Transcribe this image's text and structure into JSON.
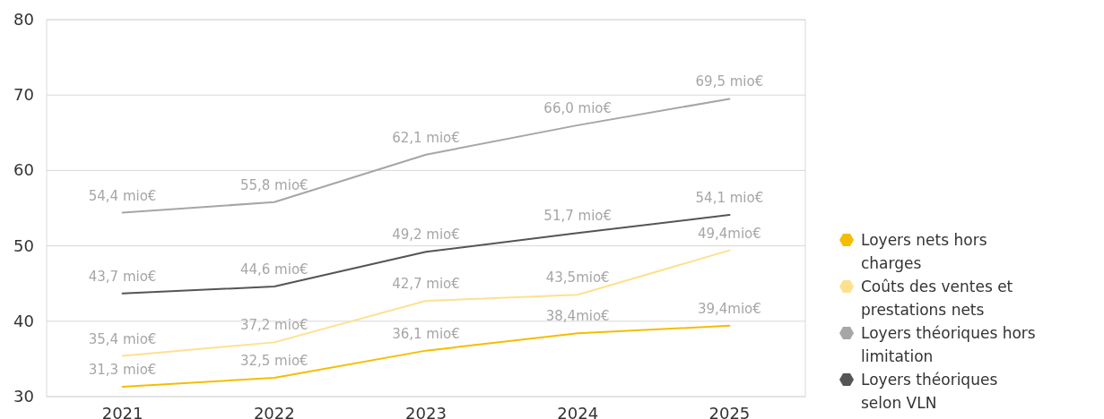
{
  "chart_data": {
    "type": "line",
    "categories": [
      "2021",
      "2022",
      "2023",
      "2024",
      "2025"
    ],
    "ylim": [
      30,
      80
    ],
    "yticks": [
      30,
      40,
      50,
      60,
      70,
      80
    ],
    "grid": "y",
    "legend": "bottom right",
    "marker": "none",
    "line_style": "solid",
    "series": [
      {
        "name": "Loyers nets hors charges",
        "color": "#f5bd00",
        "values": [
          31.3,
          32.5,
          36.1,
          38.4,
          39.4
        ],
        "value_labels": [
          "31,3 mio€",
          "32,5 mio€",
          "36,1 mio€",
          "38,4mio€",
          "39,4mio€"
        ]
      },
      {
        "name": "Coûts des ventes et prestations nets",
        "color": "#fee08f",
        "values": [
          35.4,
          37.2,
          42.7,
          43.5,
          49.4
        ],
        "value_labels": [
          "35,4 mio€",
          "37,2 mio€",
          "42,7 mio€",
          "43,5mio€",
          "49,4mio€"
        ]
      },
      {
        "name": "Loyers théoriques hors limitation",
        "color": "#a6a6a6",
        "values": [
          54.4,
          55.8,
          62.1,
          66.0,
          69.5
        ],
        "value_labels": [
          "54,4 mio€",
          "55,8 mio€",
          "62,1 mio€",
          "66,0 mio€",
          "69,5 mio€"
        ]
      },
      {
        "name": "Loyers théoriques selon VLN",
        "color": "#555555",
        "values": [
          43.7,
          44.6,
          49.2,
          51.7,
          54.1
        ],
        "value_labels": [
          "43,7 mio€",
          "44,6 mio€",
          "49,2 mio€",
          "51,7 mio€",
          "54,1 mio€"
        ]
      }
    ]
  }
}
